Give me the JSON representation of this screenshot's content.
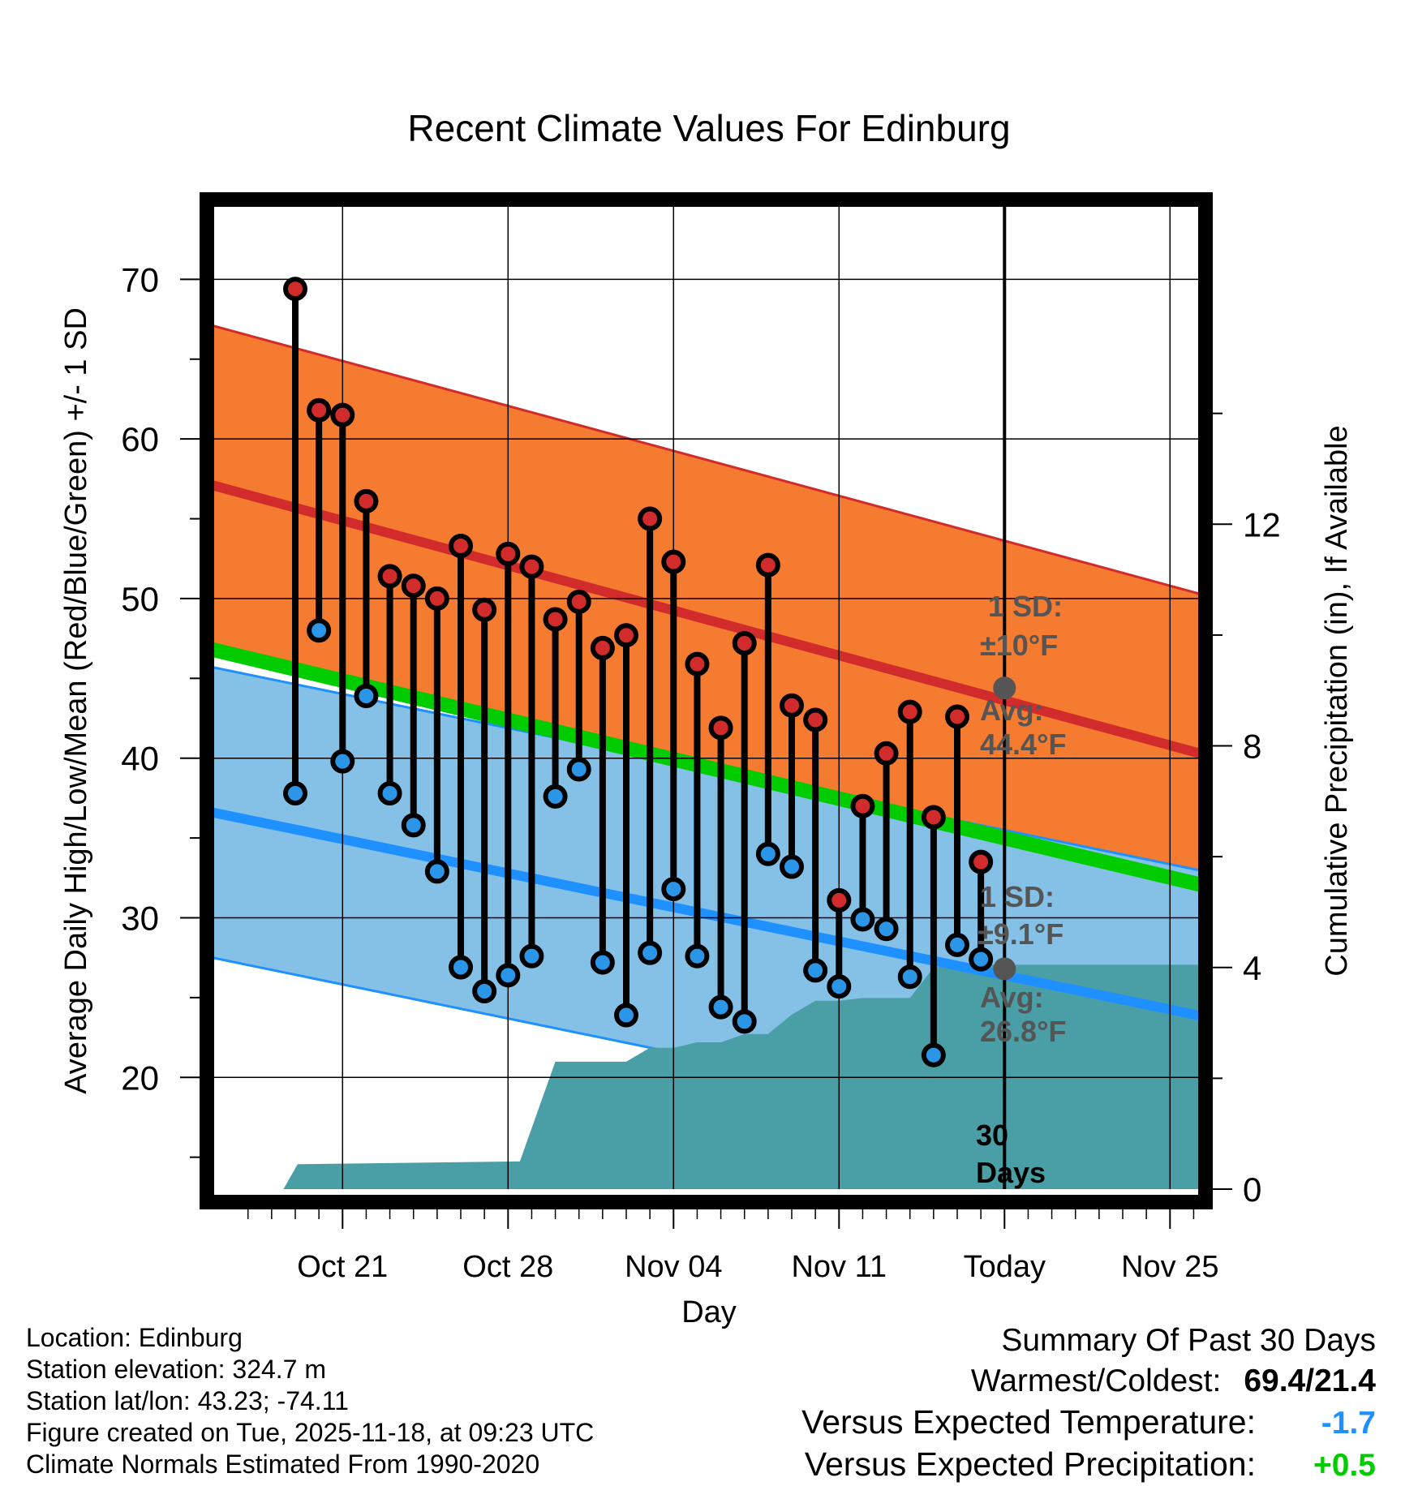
{
  "title": "Recent Climate Values For Edinburg",
  "chart_data": {
    "type": "climate-daily-range",
    "xlabel": "Day",
    "ylabel_left": "Average Daily High/Low/Mean (Red/Blue/Green) +/- 1 SD",
    "ylabel_right": "Cumulative Precipitation (in), If Available",
    "x_day_range": [
      -33.5,
      8.5
    ],
    "ylim": [
      13,
      75
    ],
    "precip_lim": [
      0,
      17.86
    ],
    "y_ticks": [
      20,
      30,
      40,
      50,
      60,
      70
    ],
    "precip_ticks": [
      0,
      4,
      8,
      12
    ],
    "x_ticks": [
      {
        "day": -28,
        "label": "Oct 21"
      },
      {
        "day": -21,
        "label": "Oct 28"
      },
      {
        "day": -14,
        "label": "Nov 04"
      },
      {
        "day": -7,
        "label": "Nov 11"
      },
      {
        "day": 0,
        "label": "Today"
      },
      {
        "day": 7,
        "label": "Nov 25"
      }
    ],
    "normals": {
      "high_avg": [
        57.1,
        40.2
      ],
      "high_sd": 10,
      "low_avg": [
        36.6,
        23.8
      ],
      "low_sd": 9.1,
      "mean_avg": [
        46.8,
        32.0
      ]
    },
    "today_markers": {
      "high_avg": 44.4,
      "low_avg": 26.8
    },
    "annotations": {
      "high_sd_text": "1 SD:",
      "high_sd_value": "±10°F",
      "high_avg_text": "Avg:",
      "high_avg_value": "44.4°F",
      "low_sd_text": "1 SD:",
      "low_sd_value": "±9.1°F",
      "low_avg_text": "Avg:",
      "low_avg_value": "26.8°F",
      "period_num": "30",
      "period_unit": "Days"
    },
    "daily": [
      {
        "day": -30,
        "high": 69.4,
        "low": 37.8
      },
      {
        "day": -29,
        "high": 61.8,
        "low": 48.0
      },
      {
        "day": -28,
        "high": 61.5,
        "low": 39.8
      },
      {
        "day": -27,
        "high": 56.1,
        "low": 43.9
      },
      {
        "day": -26,
        "high": 51.4,
        "low": 37.8
      },
      {
        "day": -25,
        "high": 50.8,
        "low": 35.8
      },
      {
        "day": -24,
        "high": 50.0,
        "low": 32.9
      },
      {
        "day": -23,
        "high": 53.3,
        "low": 26.9
      },
      {
        "day": -22,
        "high": 49.3,
        "low": 25.4
      },
      {
        "day": -21,
        "high": 52.8,
        "low": 26.4
      },
      {
        "day": -20,
        "high": 52.0,
        "low": 27.6
      },
      {
        "day": -19,
        "high": 48.7,
        "low": 37.6
      },
      {
        "day": -18,
        "high": 49.8,
        "low": 39.3
      },
      {
        "day": -17,
        "high": 46.9,
        "low": 27.2
      },
      {
        "day": -16,
        "high": 47.7,
        "low": 23.9
      },
      {
        "day": -15,
        "high": 55.0,
        "low": 27.8
      },
      {
        "day": -14,
        "high": 52.3,
        "low": 31.8
      },
      {
        "day": -13,
        "high": 45.9,
        "low": 27.6
      },
      {
        "day": -12,
        "high": 41.9,
        "low": 24.4
      },
      {
        "day": -11,
        "high": 47.2,
        "low": 23.5
      },
      {
        "day": -10,
        "high": 52.1,
        "low": 34.0
      },
      {
        "day": -9,
        "high": 43.3,
        "low": 33.2
      },
      {
        "day": -8,
        "high": 42.4,
        "low": 26.7
      },
      {
        "day": -7,
        "high": 31.1,
        "low": 25.7
      },
      {
        "day": -6,
        "high": 37.0,
        "low": 29.9
      },
      {
        "day": -5,
        "high": 40.3,
        "low": 29.3
      },
      {
        "day": -4,
        "high": 42.9,
        "low": 26.3
      },
      {
        "day": -3,
        "high": 36.3,
        "low": 21.4
      },
      {
        "day": -2,
        "high": 42.6,
        "low": 28.3
      },
      {
        "day": -1,
        "high": 33.5,
        "low": 27.4
      }
    ],
    "precip_cumulative": [
      [
        -30.5,
        0
      ],
      [
        -29.9,
        0.45
      ],
      [
        -20.5,
        0.5
      ],
      [
        -19,
        2.3
      ],
      [
        -17,
        2.3
      ],
      [
        -16,
        2.3
      ],
      [
        -15,
        2.55
      ],
      [
        -14,
        2.55
      ],
      [
        -13,
        2.65
      ],
      [
        -12,
        2.65
      ],
      [
        -11,
        2.8
      ],
      [
        -10,
        2.8
      ],
      [
        -9,
        3.15
      ],
      [
        -8,
        3.4
      ],
      [
        -7,
        3.4
      ],
      [
        -6,
        3.45
      ],
      [
        -4,
        3.45
      ],
      [
        -3,
        4.0
      ],
      [
        -2,
        4.05
      ],
      [
        8.5,
        4.05
      ]
    ]
  },
  "info": {
    "location": "Location: Edinburg",
    "elevation": "Station elevation: 324.7 m",
    "latlon": "Station lat/lon: 43.23; -74.11",
    "created": "Figure created on Tue, 2025-11-18, at 09:23 UTC",
    "normals": "Climate Normals Estimated From 1990-2020"
  },
  "summary": {
    "heading": "Summary Of Past 30 Days",
    "warm_cold_label": "Warmest/Coldest:",
    "warm_cold_value": "69.4/21.4",
    "temp_label": "Versus Expected Temperature:",
    "temp_value": "-1.7",
    "precip_label": "Versus Expected Precipitation:",
    "precip_value": "+0.5"
  },
  "colors": {
    "high_band": "#f47b30",
    "high_line": "#d12b2b",
    "low_band": "#85c1e7",
    "low_line": "#1e90ff",
    "mean_line": "#00cc00",
    "precip": "#4a9ea6",
    "high_dot": "#d12b2b",
    "low_dot": "#2b96e8",
    "today_dot": "#555555",
    "annotation": "#555555",
    "cold_value": "#1e90ff",
    "precip_value": "#00cc00"
  }
}
